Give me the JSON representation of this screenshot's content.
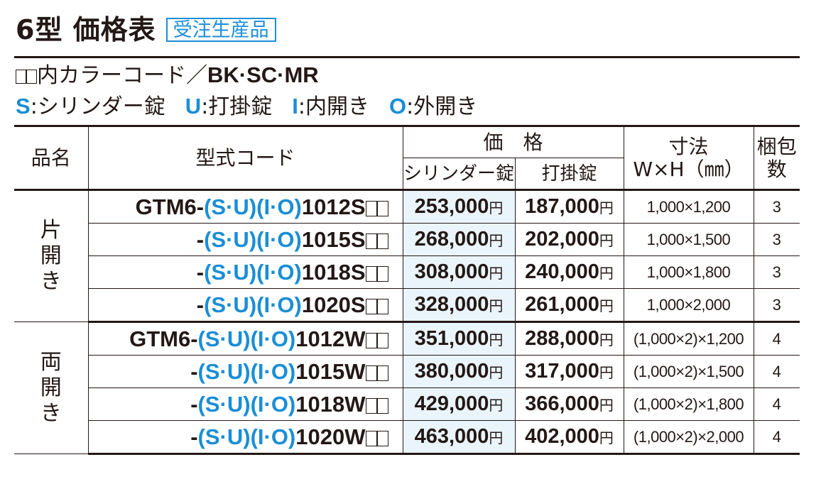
{
  "title": {
    "text": "6型 価格表",
    "badge": "受注生産品"
  },
  "color_line": {
    "prefix": "内カラーコード／",
    "codes": "BK·SC·MR"
  },
  "legend": [
    {
      "key": "S",
      "label": ":シリンダー錠"
    },
    {
      "key": "U",
      "label": ":打掛錠"
    },
    {
      "key": "I",
      "label": ":内開き"
    },
    {
      "key": "O",
      "label": ":外開き"
    }
  ],
  "table": {
    "headers": {
      "name": "品名",
      "code": "型式コード",
      "price": "価　格",
      "price_cylinder": "シリンダー錠",
      "price_latch": "打掛錠",
      "size_top": "寸法",
      "size_bottom": "W×H（㎜）",
      "pack_top": "梱包",
      "pack_bottom": "数"
    },
    "yen": "円",
    "groups": [
      {
        "name": "片開き",
        "rows": [
          {
            "prefix": "GTM6-",
            "size_code": "1012S",
            "cylinder": "253,000",
            "latch": "187,000",
            "dims": "1,000×1,200",
            "count": "3"
          },
          {
            "prefix": "-",
            "size_code": "1015S",
            "cylinder": "268,000",
            "latch": "202,000",
            "dims": "1,000×1,500",
            "count": "3"
          },
          {
            "prefix": "-",
            "size_code": "1018S",
            "cylinder": "308,000",
            "latch": "240,000",
            "dims": "1,000×1,800",
            "count": "3"
          },
          {
            "prefix": "-",
            "size_code": "1020S",
            "cylinder": "328,000",
            "latch": "261,000",
            "dims": "1,000×2,000",
            "count": "3"
          }
        ]
      },
      {
        "name": "両開き",
        "rows": [
          {
            "prefix": "GTM6-",
            "size_code": "1012W",
            "cylinder": "351,000",
            "latch": "288,000",
            "dims": "(1,000×2)×1,200",
            "count": "4"
          },
          {
            "prefix": "-",
            "size_code": "1015W",
            "cylinder": "380,000",
            "latch": "317,000",
            "dims": "(1,000×2)×1,500",
            "count": "4"
          },
          {
            "prefix": "-",
            "size_code": "1018W",
            "cylinder": "429,000",
            "latch": "366,000",
            "dims": "(1,000×2)×1,800",
            "count": "4"
          },
          {
            "prefix": "-",
            "size_code": "1020W",
            "cylinder": "463,000",
            "latch": "402,000",
            "dims": "(1,000×2)×2,000",
            "count": "4"
          }
        ]
      }
    ]
  }
}
